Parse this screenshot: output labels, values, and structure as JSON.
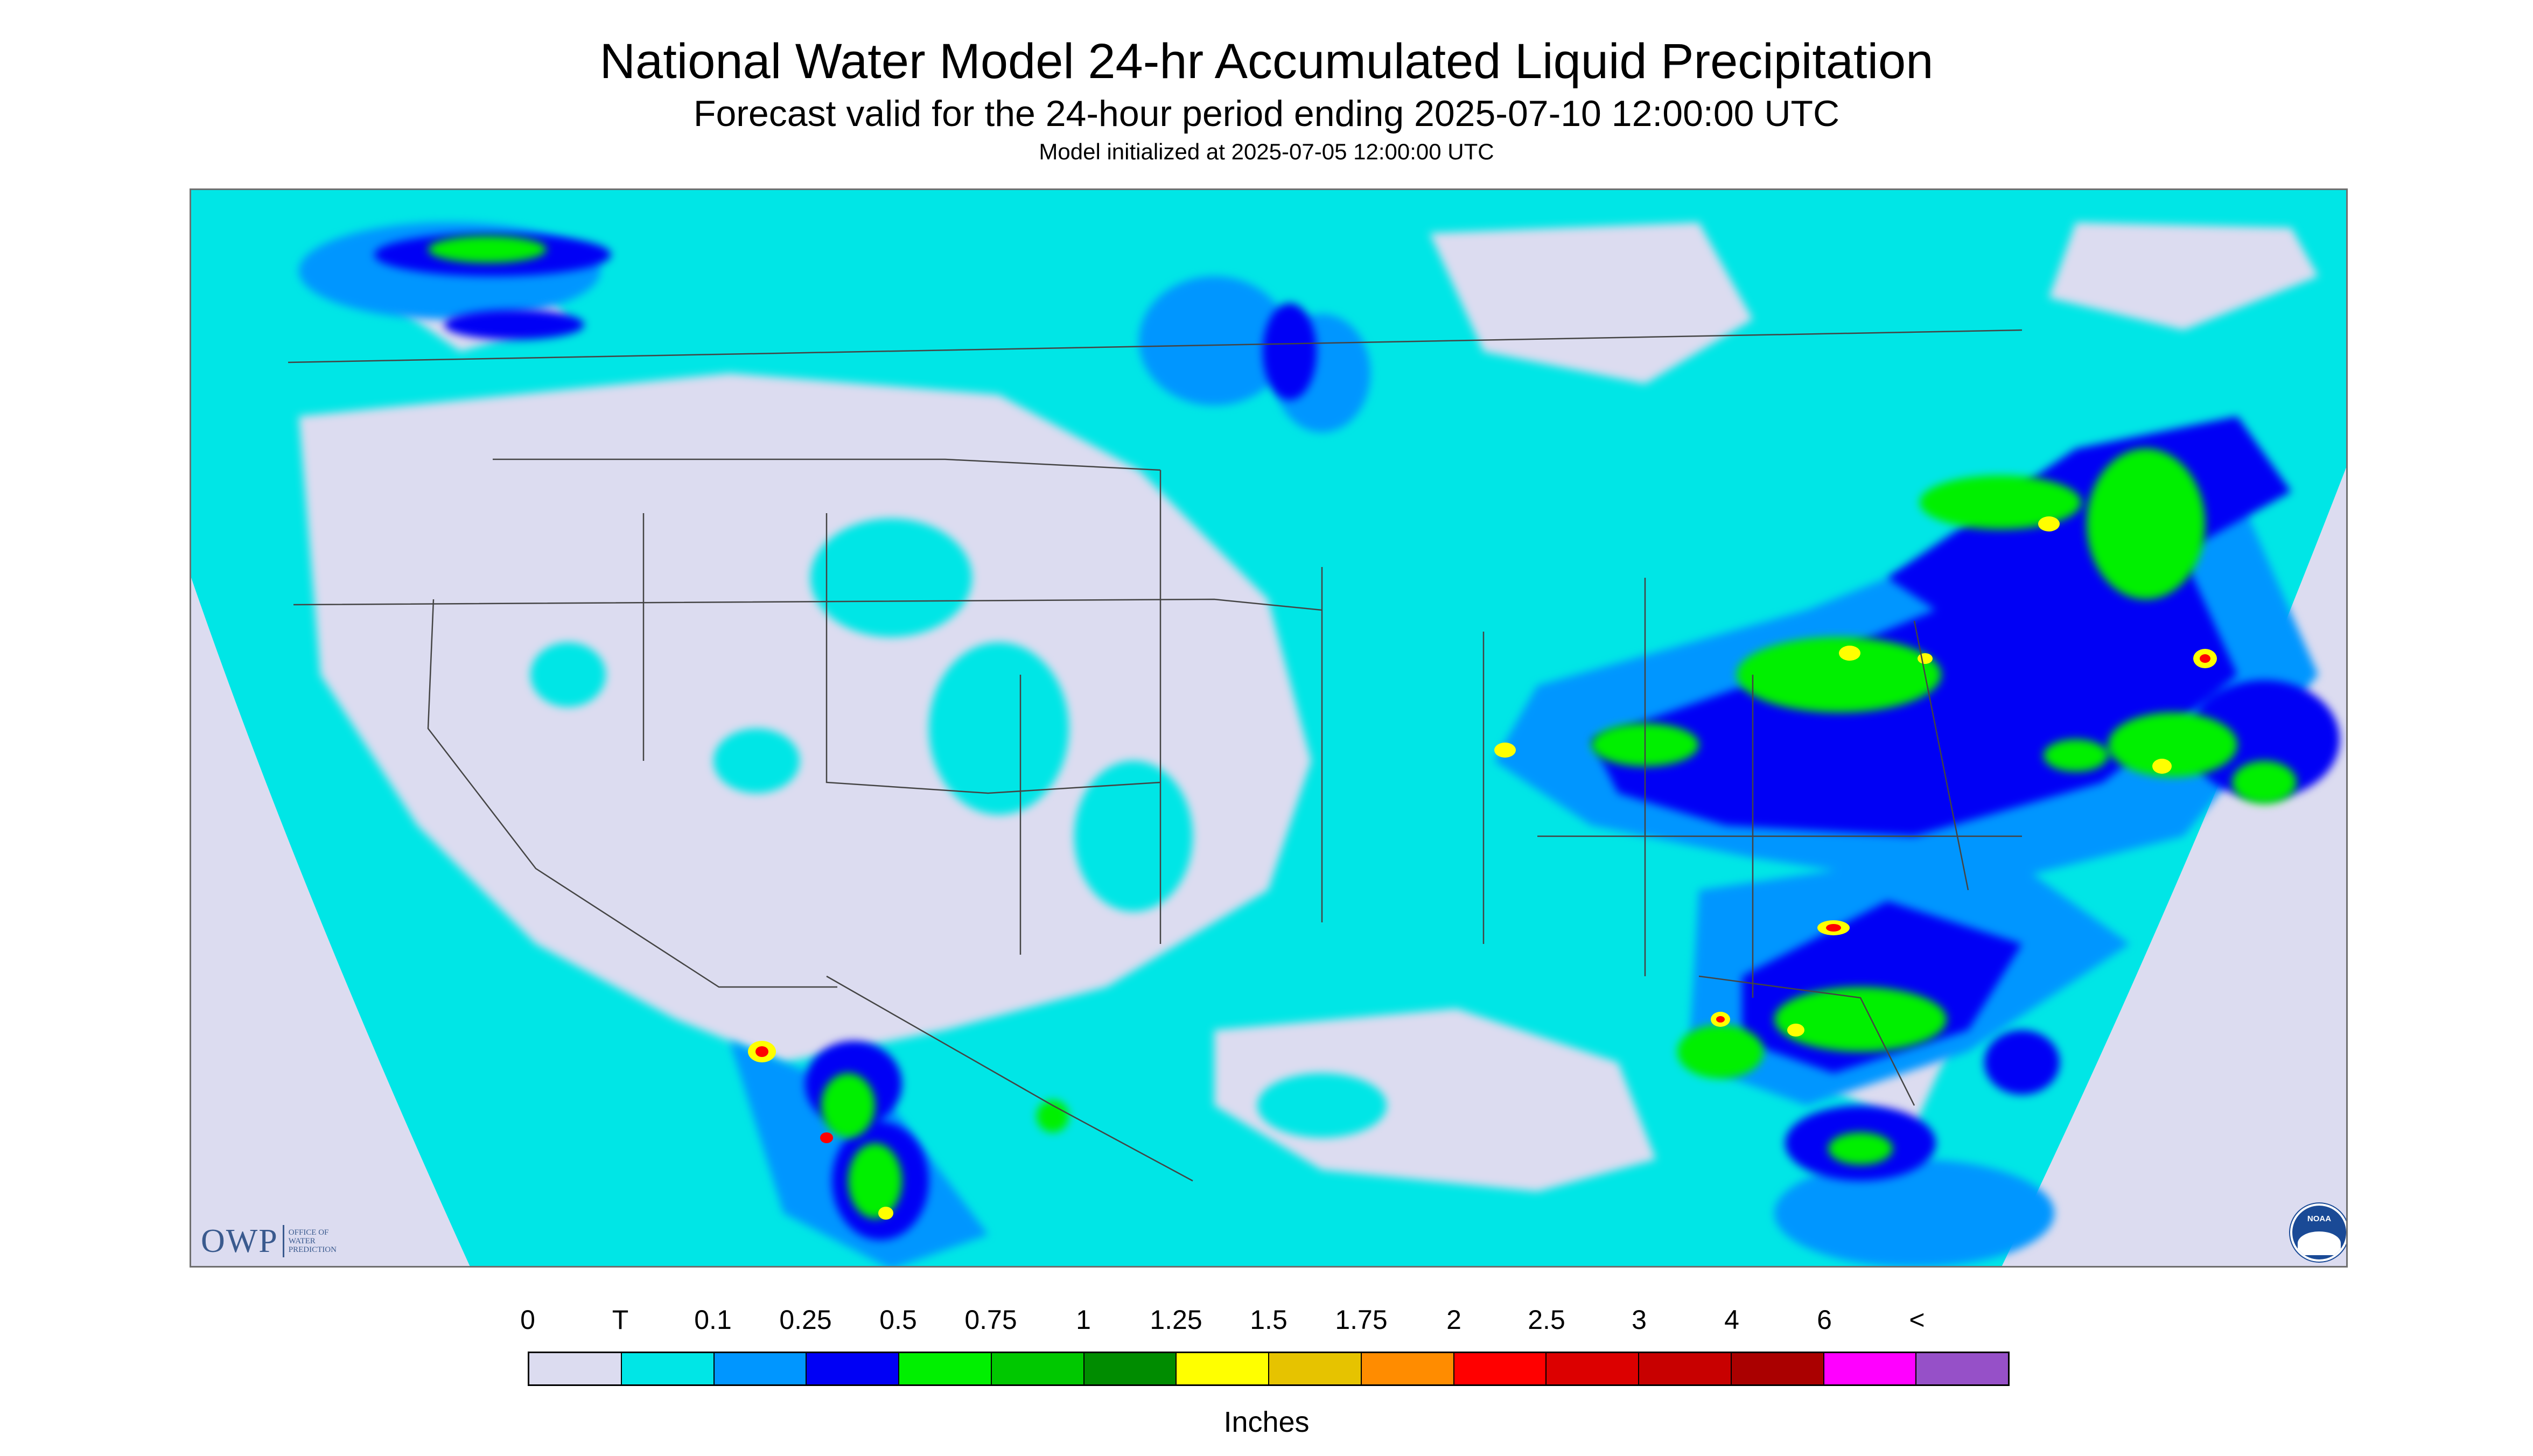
{
  "title": "National Water Model 24-hr Accumulated Liquid Precipitation",
  "subtitle": "Forecast valid for the 24-hour period ending 2025-07-10 12:00:00 UTC",
  "init_note": "Model initialized at 2025-07-05 12:00:00 UTC",
  "logos": {
    "owp_letters": "OWP",
    "owp_name": [
      "OFFICE OF",
      "WATER",
      "PREDICTION"
    ],
    "noaa": "NOAA"
  },
  "legend": {
    "labels": [
      "0",
      "T",
      "0.1",
      "0.25",
      "0.5",
      "0.75",
      "1",
      "1.25",
      "1.5",
      "1.75",
      "2",
      "2.5",
      "3",
      "4",
      "6",
      "<"
    ],
    "colors": [
      "#dcdcf0",
      "#00e6e6",
      "#0096ff",
      "#0000f5",
      "#00f000",
      "#00c800",
      "#008c00",
      "#ffff00",
      "#e6c300",
      "#ff8c00",
      "#ff0000",
      "#dc0000",
      "#c80000",
      "#aa0000",
      "#ff00ff",
      "#9650c8"
    ],
    "units": "Inches"
  },
  "colors": {
    "no_precip": "#dcdcf0",
    "trace": "#00e6e6",
    "light": "#0096ff",
    "moderate": "#0000f5",
    "green": "#00f000",
    "green_dark": "#00c800",
    "yellow": "#ffff00",
    "red": "#ff0000",
    "border": "#444444"
  }
}
